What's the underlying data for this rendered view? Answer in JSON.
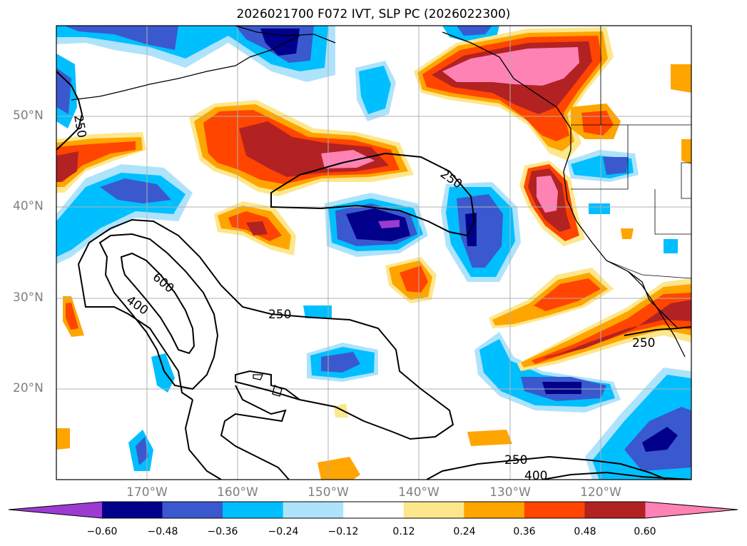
{
  "title": "2026021700 F072 IVT, SLP PC (2026022300)",
  "lat_labels": [
    "50°N",
    "40°N",
    "30°N",
    "20°N"
  ],
  "lon_labels": [
    "170°W",
    "160°W",
    "150°W",
    "140°W",
    "130°W",
    "120°W"
  ],
  "contour_labels": [
    "250",
    "250",
    "600",
    "400",
    "250",
    "250",
    "250",
    "400"
  ],
  "colorbar": {
    "colors": [
      "#9c3bd1",
      "#00008b",
      "#3a59cf",
      "#00bfff",
      "#aee3fb",
      "#ffffff",
      "#fde78c",
      "#ffa500",
      "#ff4500",
      "#b22222",
      "#ff82b4"
    ],
    "ticks": [
      "−0.60",
      "−0.48",
      "−0.36",
      "−0.24",
      "−0.12",
      "0.12",
      "0.24",
      "0.36",
      "0.48",
      "0.60"
    ]
  }
}
